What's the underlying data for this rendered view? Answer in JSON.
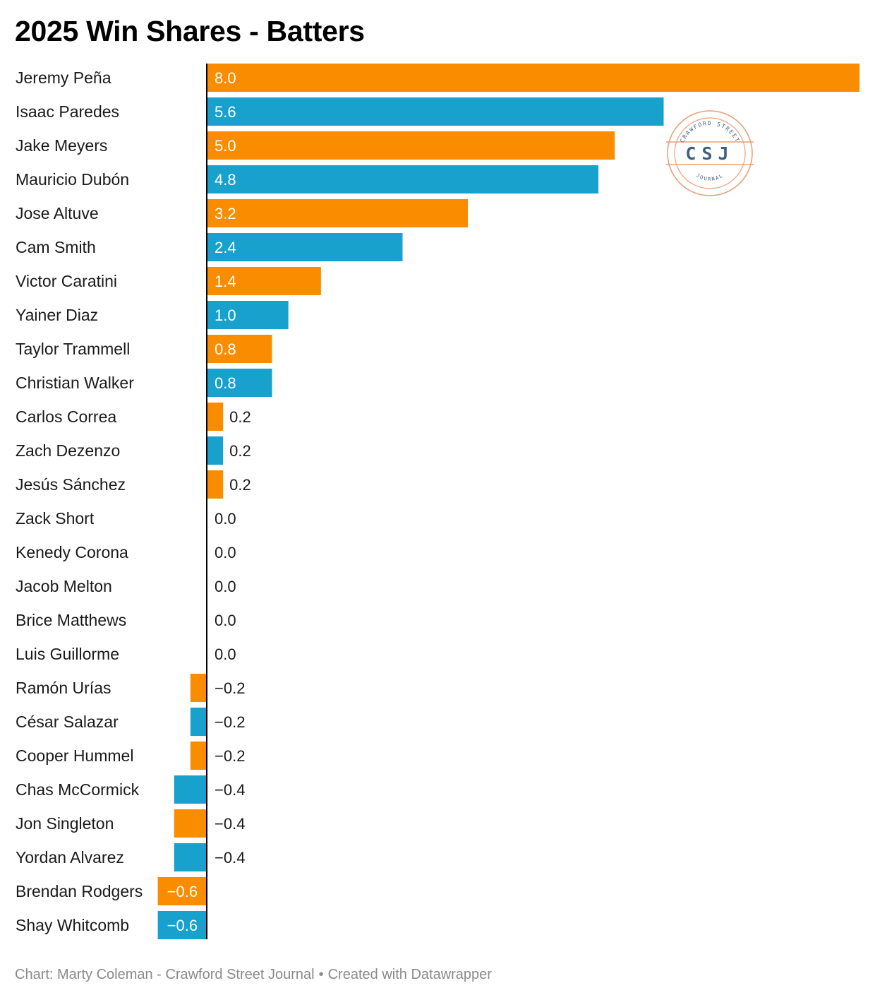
{
  "title": "2025 Win Shares - Batters",
  "source": {
    "chart_credit": "Chart: Marty Coleman - Crawford Street Journal",
    "separator": "•",
    "tool_credit": "Created with Datawrapper"
  },
  "logo": {
    "top_text": "CRAWFORD STREET",
    "center_text": "CSJ",
    "bottom_text": "JOURNAL",
    "ring_color": "#e9a07a",
    "text_color": "#3f5f80"
  },
  "colors": {
    "orange": "#fa8c00",
    "blue": "#18a1cd",
    "axis": "#000000",
    "label_inside": "#ffffff",
    "label_outside": "#1a1a1a"
  },
  "chart_data": {
    "type": "bar",
    "orientation": "horizontal",
    "title": "2025 Win Shares - Batters",
    "xlim": [
      -0.6,
      8.0
    ],
    "grid": false,
    "value_format": "one decimal, minus sign for negatives",
    "categories": [
      "Jeremy Peña",
      "Isaac Paredes",
      "Jake Meyers",
      "Mauricio Dubón",
      "Jose Altuve",
      "Cam Smith",
      "Victor Caratini",
      "Yainer Diaz",
      "Taylor Trammell",
      "Christian Walker",
      "Carlos Correa",
      "Zach Dezenzo",
      "Jesús Sánchez",
      "Zack Short",
      "Kenedy Corona",
      "Jacob Melton",
      "Brice Matthews",
      "Luis Guillorme",
      "Ramón Urías",
      "César Salazar",
      "Cooper Hummel",
      "Chas McCormick",
      "Jon Singleton",
      "Yordan Alvarez",
      "Brendan Rodgers",
      "Shay Whitcomb"
    ],
    "values": [
      8.0,
      5.6,
      5.0,
      4.8,
      3.2,
      2.4,
      1.4,
      1.0,
      0.8,
      0.8,
      0.2,
      0.2,
      0.2,
      0.0,
      0.0,
      0.0,
      0.0,
      0.0,
      -0.2,
      -0.2,
      -0.2,
      -0.4,
      -0.4,
      -0.4,
      -0.6,
      -0.6
    ],
    "value_labels": [
      "8.0",
      "5.6",
      "5.0",
      "4.8",
      "3.2",
      "2.4",
      "1.4",
      "1.0",
      "0.8",
      "0.8",
      "0.2",
      "0.2",
      "0.2",
      "0.0",
      "0.0",
      "0.0",
      "0.0",
      "0.0",
      "−0.2",
      "−0.2",
      "−0.2",
      "−0.4",
      "−0.4",
      "−0.4",
      "−0.6",
      "−0.6"
    ],
    "bar_colors": [
      "orange",
      "blue",
      "orange",
      "blue",
      "orange",
      "blue",
      "orange",
      "blue",
      "orange",
      "blue",
      "orange",
      "blue",
      "orange",
      "blue",
      "orange",
      "blue",
      "orange",
      "blue",
      "orange",
      "blue",
      "orange",
      "blue",
      "orange",
      "blue",
      "orange",
      "blue"
    ]
  }
}
